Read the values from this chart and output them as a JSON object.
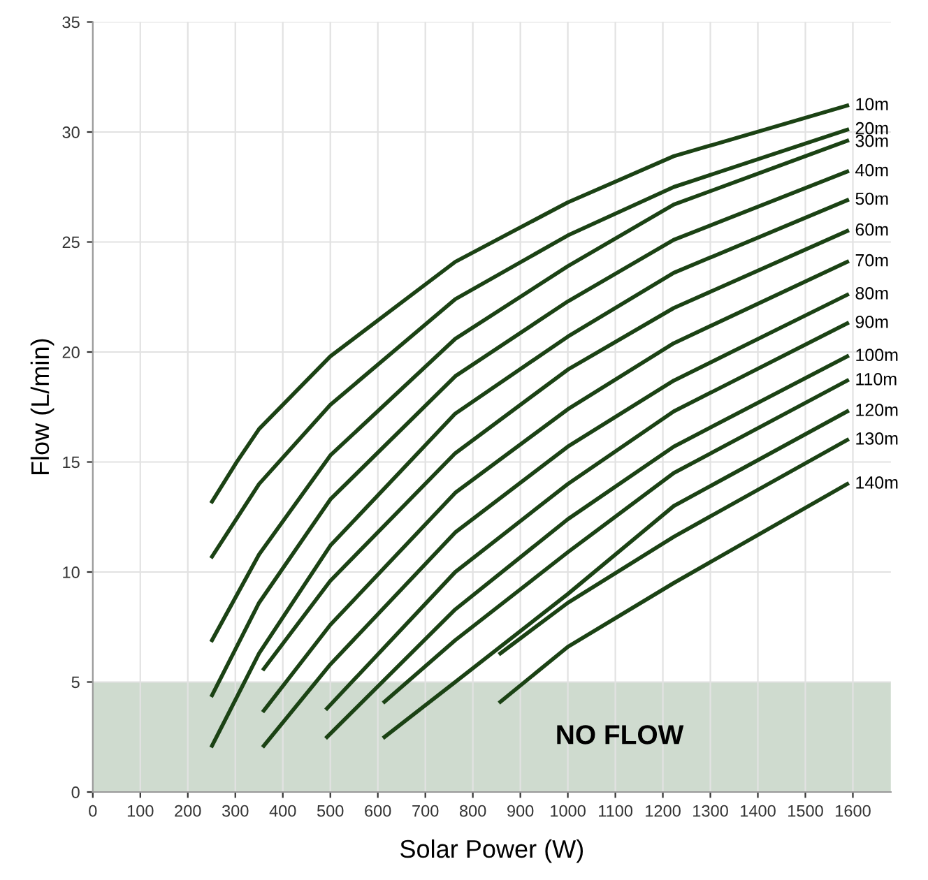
{
  "chart_data": {
    "type": "line",
    "xlabel": "Solar Power (W)",
    "ylabel": "Flow (L/min)",
    "xlim": [
      0,
      1680
    ],
    "ylim": [
      0,
      35
    ],
    "xticks": [
      0,
      100,
      200,
      300,
      400,
      500,
      600,
      700,
      800,
      900,
      1000,
      1100,
      1200,
      1300,
      1400,
      1500,
      1600
    ],
    "yticks": [
      0,
      5,
      10,
      15,
      20,
      25,
      30,
      35
    ],
    "grid": true,
    "legend": false,
    "marker": "none",
    "line_style": "solid",
    "bands": [
      {
        "axis": "y",
        "from": 0,
        "to": 5,
        "label": "NO FLOW",
        "color": "#cfdbcf"
      }
    ],
    "series": [
      {
        "name": "10m",
        "color": "#1b4214",
        "x": [
          251,
          303,
          350,
          500,
          763,
          1000,
          1223,
          1588
        ],
        "values": [
          13.2,
          15.0,
          16.5,
          19.8,
          24.1,
          26.8,
          28.9,
          31.2
        ]
      },
      {
        "name": "20m",
        "color": "#1b4214",
        "x": [
          251,
          350,
          500,
          763,
          1000,
          1223,
          1588
        ],
        "values": [
          10.7,
          14.0,
          17.6,
          22.4,
          25.3,
          27.5,
          30.1
        ]
      },
      {
        "name": "30m",
        "color": "#1b4214",
        "x": [
          251,
          350,
          500,
          763,
          1000,
          1223,
          1588
        ],
        "values": [
          6.9,
          10.8,
          15.3,
          20.6,
          23.9,
          26.7,
          29.6
        ]
      },
      {
        "name": "40m",
        "color": "#1b4214",
        "x": [
          251,
          350,
          500,
          763,
          1000,
          1223,
          1588
        ],
        "values": [
          4.4,
          8.6,
          13.3,
          18.9,
          22.3,
          25.1,
          28.2
        ]
      },
      {
        "name": "50m",
        "color": "#1b4214",
        "x": [
          251,
          350,
          500,
          763,
          1000,
          1223,
          1588
        ],
        "values": [
          2.1,
          6.3,
          11.2,
          17.2,
          20.7,
          23.6,
          26.9
        ]
      },
      {
        "name": "60m",
        "color": "#1b4214",
        "x": [
          360,
          500,
          763,
          1000,
          1223,
          1588
        ],
        "values": [
          5.6,
          9.6,
          15.4,
          19.2,
          22.0,
          25.5
        ]
      },
      {
        "name": "70m",
        "color": "#1b4214",
        "x": [
          360,
          500,
          763,
          1000,
          1223,
          1588
        ],
        "values": [
          3.7,
          7.6,
          13.6,
          17.4,
          20.4,
          24.1
        ]
      },
      {
        "name": "80m",
        "color": "#1b4214",
        "x": [
          360,
          500,
          763,
          1000,
          1223,
          1588
        ],
        "values": [
          2.1,
          5.8,
          11.8,
          15.7,
          18.7,
          22.6
        ]
      },
      {
        "name": "90m",
        "color": "#1b4214",
        "x": [
          493,
          763,
          1000,
          1223,
          1588
        ],
        "values": [
          3.8,
          10.0,
          14.0,
          17.3,
          21.3
        ]
      },
      {
        "name": "100m",
        "color": "#1b4214",
        "x": [
          493,
          763,
          1000,
          1223,
          1588
        ],
        "values": [
          2.5,
          8.3,
          12.4,
          15.7,
          19.8
        ]
      },
      {
        "name": "110m",
        "color": "#1b4214",
        "x": [
          614,
          763,
          1000,
          1223,
          1588
        ],
        "values": [
          4.1,
          6.9,
          10.9,
          14.5,
          18.7
        ]
      },
      {
        "name": "120m",
        "color": "#1b4214",
        "x": [
          614,
          763,
          1000,
          1223,
          1588
        ],
        "values": [
          2.5,
          5.0,
          9.0,
          13.0,
          17.3
        ]
      },
      {
        "name": "130m",
        "color": "#1b4214",
        "x": [
          858,
          1000,
          1223,
          1588
        ],
        "values": [
          6.3,
          8.6,
          11.6,
          16.0
        ]
      },
      {
        "name": "140m",
        "color": "#1b4214",
        "x": [
          858,
          1000,
          1223,
          1588
        ],
        "values": [
          4.1,
          6.6,
          9.5,
          14.0
        ]
      }
    ]
  }
}
